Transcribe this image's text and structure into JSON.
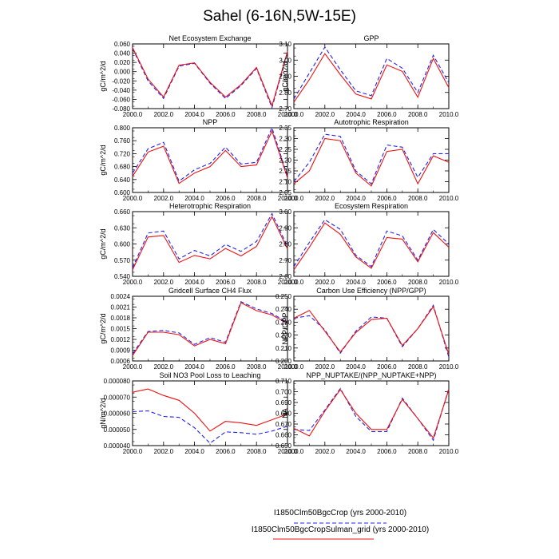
{
  "figure": {
    "title": "Sahel (6-16N,5W-15E)"
  },
  "legend": {
    "entries": [
      {
        "name": "I1850Clm50BgcCrop (yrs 2000-2010)",
        "color": "#2222ee",
        "dash": true
      },
      {
        "name": "I1850Clm50BgcCropSulman_grid (yrs 2000-2010)",
        "color": "#ee1111",
        "dash": false
      }
    ]
  },
  "colors": {
    "series_a": "#2222ee",
    "series_b": "#ee1111"
  },
  "chart_data": [
    {
      "type": "line",
      "title": "Net Ecosystem Exchange",
      "ylabel": "gC/m^2/d",
      "x": [
        2000,
        2001,
        2002,
        2003,
        2004,
        2005,
        2006,
        2007,
        2008,
        2009,
        2010
      ],
      "xlim": [
        2000,
        2010
      ],
      "xticks": [
        "2000.0",
        "2002.0",
        "2004.0",
        "2006.0",
        "2008.0",
        "2010.0"
      ],
      "ylim": [
        -0.08,
        0.06
      ],
      "yticks": [
        "-0.080",
        "-0.060",
        "-0.040",
        "-0.020",
        "0.000",
        "0.020",
        "0.040",
        "0.060"
      ],
      "series": [
        {
          "values": [
            0.05,
            -0.02,
            -0.058,
            0.012,
            0.018,
            -0.025,
            -0.058,
            -0.03,
            0.007,
            -0.078,
            0.042
          ]
        },
        {
          "values": [
            0.052,
            -0.016,
            -0.055,
            0.014,
            0.019,
            -0.023,
            -0.055,
            -0.028,
            0.009,
            -0.074,
            0.044
          ]
        }
      ]
    },
    {
      "type": "line",
      "title": "GPP",
      "ylabel": "gC/m^2/d",
      "x": [
        2000,
        2001,
        2002,
        2003,
        2004,
        2005,
        2006,
        2007,
        2008,
        2009,
        2010
      ],
      "xlim": [
        2000,
        2010
      ],
      "xticks": [
        "2000.0",
        "2002.0",
        "2004.0",
        "2006.0",
        "2008.0",
        "2010.0"
      ],
      "ylim": [
        2.7,
        3.1
      ],
      "yticks": [
        "2.70",
        "2.80",
        "2.90",
        "3.00",
        "3.10"
      ],
      "series": [
        {
          "values": [
            2.76,
            2.92,
            3.08,
            2.94,
            2.81,
            2.78,
            3.01,
            2.95,
            2.8,
            3.03,
            2.86
          ]
        },
        {
          "values": [
            2.74,
            2.88,
            3.04,
            2.91,
            2.79,
            2.76,
            2.97,
            2.93,
            2.77,
            3.01,
            2.83
          ]
        }
      ]
    },
    {
      "type": "line",
      "title": "NPP",
      "ylabel": "gC/m^2/d",
      "x": [
        2000,
        2001,
        2002,
        2003,
        2004,
        2005,
        2006,
        2007,
        2008,
        2009,
        2010
      ],
      "xlim": [
        2000,
        2010
      ],
      "xticks": [
        "2000.0",
        "2002.0",
        "2004.0",
        "2006.0",
        "2008.0",
        "2010.0"
      ],
      "ylim": [
        0.6,
        0.8
      ],
      "yticks": [
        "0.600",
        "0.640",
        "0.680",
        "0.720",
        "0.760",
        "0.800"
      ],
      "series": [
        {
          "values": [
            0.66,
            0.735,
            0.755,
            0.635,
            0.67,
            0.69,
            0.74,
            0.688,
            0.693,
            0.8,
            0.65
          ]
        },
        {
          "values": [
            0.65,
            0.725,
            0.743,
            0.628,
            0.66,
            0.68,
            0.73,
            0.68,
            0.685,
            0.79,
            0.645
          ]
        }
      ]
    },
    {
      "type": "line",
      "title": "Autotrophic Respiration",
      "ylabel": "",
      "x": [
        2000,
        2001,
        2002,
        2003,
        2004,
        2005,
        2006,
        2007,
        2008,
        2009,
        2010
      ],
      "xlim": [
        2000,
        2010
      ],
      "xticks": [
        "2000.0",
        "2002.0",
        "2004.0",
        "2006.0",
        "2008.0",
        "2010.0"
      ],
      "ylim": [
        2.05,
        2.35
      ],
      "yticks": [
        "2.05",
        "2.10",
        "2.15",
        "2.20",
        "2.25",
        "2.30",
        "2.35"
      ],
      "series": [
        {
          "values": [
            2.1,
            2.19,
            2.32,
            2.31,
            2.15,
            2.09,
            2.27,
            2.26,
            2.12,
            2.23,
            2.23
          ]
        },
        {
          "values": [
            2.09,
            2.15,
            2.3,
            2.29,
            2.14,
            2.08,
            2.24,
            2.25,
            2.09,
            2.22,
            2.19
          ]
        }
      ]
    },
    {
      "type": "line",
      "title": "Heterotrophic Respiration",
      "ylabel": "gC/m^2/d",
      "x": [
        2000,
        2001,
        2002,
        2003,
        2004,
        2005,
        2006,
        2007,
        2008,
        2009,
        2010
      ],
      "xlim": [
        2000,
        2010
      ],
      "xticks": [
        "2000.0",
        "2002.0",
        "2004.0",
        "2006.0",
        "2008.0",
        "2010.0"
      ],
      "ylim": [
        0.54,
        0.67
      ],
      "yticks": [
        "0.540",
        "0.570",
        "0.600",
        "0.630",
        "0.660"
      ],
      "series": [
        {
          "values": [
            0.557,
            0.627,
            0.631,
            0.575,
            0.592,
            0.581,
            0.604,
            0.59,
            0.61,
            0.666,
            0.6
          ]
        },
        {
          "values": [
            0.553,
            0.619,
            0.622,
            0.568,
            0.582,
            0.575,
            0.596,
            0.581,
            0.6,
            0.66,
            0.595
          ]
        }
      ]
    },
    {
      "type": "line",
      "title": "Ecosystem Respiration",
      "ylabel": "",
      "x": [
        2000,
        2001,
        2002,
        2003,
        2004,
        2005,
        2006,
        2007,
        2008,
        2009,
        2010
      ],
      "xlim": [
        2000,
        2010
      ],
      "xticks": [
        "2000.0",
        "2002.0",
        "2004.0",
        "2006.0",
        "2008.0",
        "2010.0"
      ],
      "ylim": [
        2.6,
        3.0
      ],
      "yticks": [
        "2.60",
        "2.70",
        "2.80",
        "2.90",
        "3.00"
      ],
      "series": [
        {
          "values": [
            2.66,
            2.81,
            2.95,
            2.89,
            2.73,
            2.66,
            2.88,
            2.85,
            2.7,
            2.89,
            2.8
          ]
        },
        {
          "values": [
            2.64,
            2.78,
            2.93,
            2.86,
            2.72,
            2.65,
            2.84,
            2.83,
            2.69,
            2.87,
            2.78
          ]
        }
      ]
    },
    {
      "type": "line",
      "title": "Gridcell Surface CH4 Flux",
      "ylabel": "gC/m^2/d",
      "x": [
        2000,
        2001,
        2002,
        2003,
        2004,
        2005,
        2006,
        2007,
        2008,
        2009,
        2010
      ],
      "xlim": [
        2000,
        2010
      ],
      "xticks": [
        "2000.0",
        "2002.0",
        "2004.0",
        "2006.0",
        "2008.0",
        "2010.0"
      ],
      "ylim": [
        0.0006,
        0.0024
      ],
      "yticks": [
        "0.0006",
        "0.0009",
        "0.0012",
        "0.0015",
        "0.0018",
        "0.0021",
        "0.0024"
      ],
      "series": [
        {
          "values": [
            0.0008,
            0.00142,
            0.00145,
            0.00138,
            0.00106,
            0.00125,
            0.00112,
            0.00225,
            0.00205,
            0.00192,
            0.00167
          ]
        },
        {
          "values": [
            0.00075,
            0.0014,
            0.0014,
            0.00133,
            0.00102,
            0.0012,
            0.00108,
            0.00222,
            0.002,
            0.00188,
            0.00164
          ]
        }
      ]
    },
    {
      "type": "line",
      "title": "Carbon Use Efficiency (NPP/GPP)",
      "ylabel": "NPP/GPP",
      "x": [
        2000,
        2001,
        2002,
        2003,
        2004,
        2005,
        2006,
        2007,
        2008,
        2009,
        2010
      ],
      "xlim": [
        2000,
        2010
      ],
      "xticks": [
        "2000.0",
        "2002.0",
        "2004.0",
        "2006.0",
        "2008.0",
        "2010.0"
      ],
      "ylim": [
        0.2,
        0.25
      ],
      "yticks": [
        "0.200",
        "0.210",
        "0.220",
        "0.230",
        "0.240",
        "0.250"
      ],
      "series": [
        {
          "values": [
            0.233,
            0.235,
            0.224,
            0.206,
            0.223,
            0.234,
            0.233,
            0.211,
            0.225,
            0.243,
            0.203
          ]
        },
        {
          "values": [
            0.233,
            0.239,
            0.223,
            0.207,
            0.222,
            0.232,
            0.233,
            0.212,
            0.225,
            0.242,
            0.205
          ]
        }
      ]
    },
    {
      "type": "line",
      "title": "Soil NO3 Pool Loss to Leaching",
      "ylabel": "gN/m^2/d",
      "x": [
        2000,
        2001,
        2002,
        2003,
        2004,
        2005,
        2006,
        2007,
        2008,
        2009,
        2010
      ],
      "xlim": [
        2000,
        2010
      ],
      "xticks": [
        "2000.0",
        "2002.0",
        "2004.0",
        "2006.0",
        "2008.0",
        "2010.0"
      ],
      "ylim": [
        4e-05,
        8e-05
      ],
      "yticks": [
        "0.000040",
        "0.000050",
        "0.000060",
        "0.000070",
        "0.000080"
      ],
      "series": [
        {
          "values": [
            6.1e-05,
            6.15e-05,
            5.8e-05,
            5.75e-05,
            5.1e-05,
            4.15e-05,
            4.85e-05,
            4.8e-05,
            4.7e-05,
            4.9e-05,
            5.2e-05
          ]
        },
        {
          "values": [
            7.3e-05,
            7.5e-05,
            7.1e-05,
            6.8e-05,
            6e-05,
            4.9e-05,
            5.5e-05,
            5.4e-05,
            5.25e-05,
            5.6e-05,
            5.95e-05
          ]
        }
      ]
    },
    {
      "type": "line",
      "title": "NPP_NUPTAKE/(NPP_NUPTAKE+NPP)",
      "ylabel": "NA",
      "x": [
        2000,
        2001,
        2002,
        2003,
        2004,
        2005,
        2006,
        2007,
        2008,
        2009,
        2010
      ],
      "xlim": [
        2000,
        2010
      ],
      "xticks": [
        "2000.0",
        "2002.0",
        "2004.0",
        "2006.0",
        "2008.0",
        "2010.0"
      ],
      "ylim": [
        0.65,
        0.71
      ],
      "yticks": [
        "0.650",
        "0.660",
        "0.670",
        "0.680",
        "0.690",
        "0.700",
        "0.710"
      ],
      "series": [
        {
          "values": [
            0.665,
            0.664,
            0.683,
            0.703,
            0.677,
            0.663,
            0.663,
            0.694,
            0.675,
            0.655,
            0.703
          ]
        },
        {
          "values": [
            0.666,
            0.659,
            0.682,
            0.702,
            0.68,
            0.665,
            0.665,
            0.693,
            0.675,
            0.657,
            0.702
          ]
        }
      ]
    }
  ]
}
